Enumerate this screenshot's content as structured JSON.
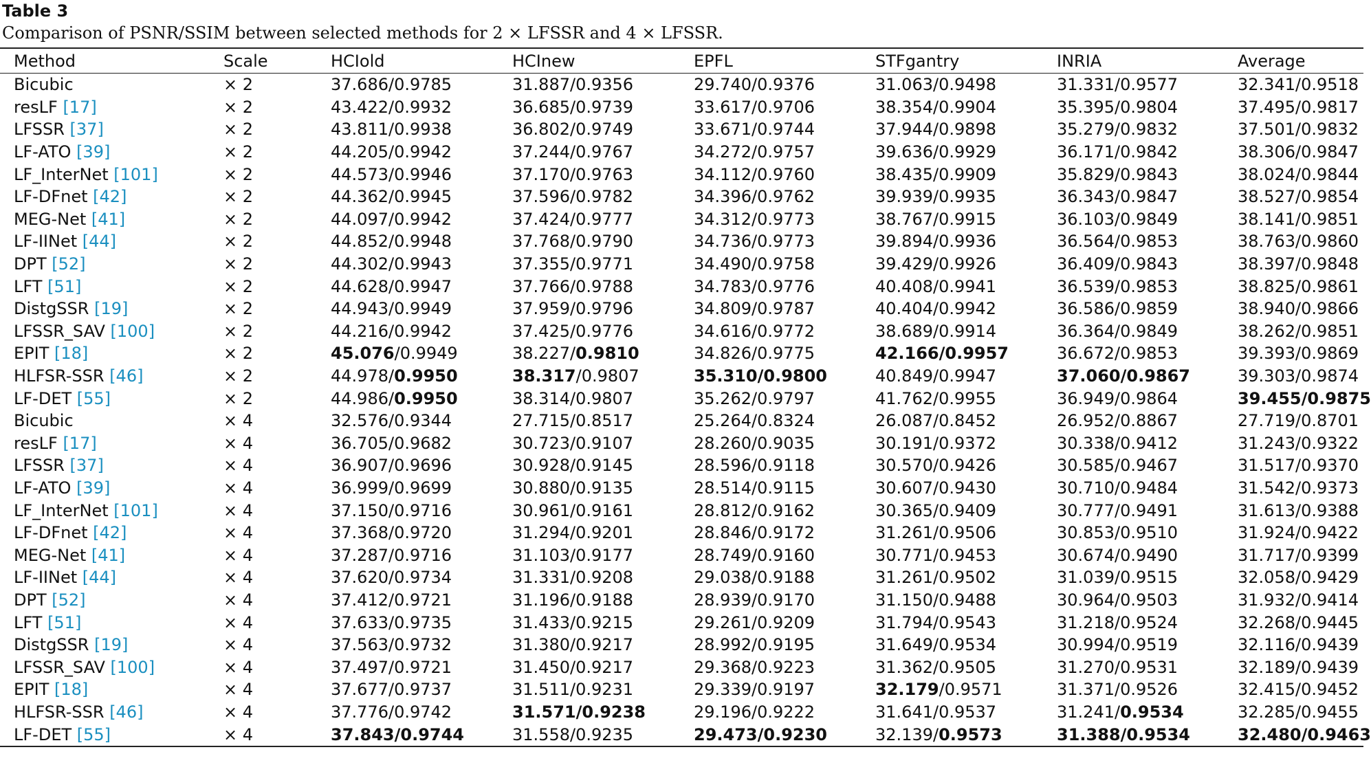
{
  "title": "Table 3",
  "caption": "Comparison of PSNR/SSIM between selected methods for 2 × LFSSR and 4 × LFSSR.",
  "table": {
    "headers": [
      "Method",
      "Scale",
      "HCIold",
      "HCInew",
      "EPFL",
      "STFgantry",
      "INRIA",
      "Average"
    ],
    "rows": [
      {
        "method": "Bicubic",
        "scale": "× 2",
        "cells": [
          "37.686/0.9785",
          "31.887/0.9356",
          "29.740/0.9376",
          "31.063/0.9498",
          "31.331/0.9577",
          "32.341/0.9518"
        ]
      },
      {
        "method": "resLF",
        "ref": "[17]",
        "scale": "× 2",
        "cells": [
          "43.422/0.9932",
          "36.685/0.9739",
          "33.617/0.9706",
          "38.354/0.9904",
          "35.395/0.9804",
          "37.495/0.9817"
        ]
      },
      {
        "method": "LFSSR",
        "ref": "[37]",
        "scale": "× 2",
        "cells": [
          "43.811/0.9938",
          "36.802/0.9749",
          "33.671/0.9744",
          "37.944/0.9898",
          "35.279/0.9832",
          "37.501/0.9832"
        ]
      },
      {
        "method": "LF-ATO",
        "ref": "[39]",
        "scale": "× 2",
        "cells": [
          "44.205/0.9942",
          "37.244/0.9767",
          "34.272/0.9757",
          "39.636/0.9929",
          "36.171/0.9842",
          "38.306/0.9847"
        ]
      },
      {
        "method": "LF_InterNet",
        "ref": "[101]",
        "scale": "× 2",
        "cells": [
          "44.573/0.9946",
          "37.170/0.9763",
          "34.112/0.9760",
          "38.435/0.9909",
          "35.829/0.9843",
          "38.024/0.9844"
        ]
      },
      {
        "method": "LF-DFnet",
        "ref": "[42]",
        "scale": "× 2",
        "cells": [
          "44.362/0.9945",
          "37.596/0.9782",
          "34.396/0.9762",
          "39.939/0.9935",
          "36.343/0.9847",
          "38.527/0.9854"
        ]
      },
      {
        "method": "MEG-Net",
        "ref": "[41]",
        "scale": "× 2",
        "cells": [
          "44.097/0.9942",
          "37.424/0.9777",
          "34.312/0.9773",
          "38.767/0.9915",
          "36.103/0.9849",
          "38.141/0.9851"
        ]
      },
      {
        "method": "LF-IINet",
        "ref": "[44]",
        "scale": "× 2",
        "cells": [
          "44.852/0.9948",
          "37.768/0.9790",
          "34.736/0.9773",
          "39.894/0.9936",
          "36.564/0.9853",
          "38.763/0.9860"
        ]
      },
      {
        "method": "DPT",
        "ref": "[52]",
        "scale": "× 2",
        "cells": [
          "44.302/0.9943",
          "37.355/0.9771",
          "34.490/0.9758",
          "39.429/0.9926",
          "36.409/0.9843",
          "38.397/0.9848"
        ]
      },
      {
        "method": "LFT",
        "ref": "[51]",
        "scale": "× 2",
        "cells": [
          "44.628/0.9947",
          "37.766/0.9788",
          "34.783/0.9776",
          "40.408/0.9941",
          "36.539/0.9853",
          "38.825/0.9861"
        ]
      },
      {
        "method": "DistgSSR",
        "ref": "[19]",
        "scale": "× 2",
        "cells": [
          "44.943/0.9949",
          "37.959/0.9796",
          "34.809/0.9787",
          "40.404/0.9942",
          "36.586/0.9859",
          "38.940/0.9866"
        ]
      },
      {
        "method": "LFSSR_SAV",
        "ref": "[100]",
        "scale": "× 2",
        "cells": [
          "44.216/0.9942",
          "37.425/0.9776",
          "34.616/0.9772",
          "38.689/0.9914",
          "36.364/0.9849",
          "38.262/0.9851"
        ]
      },
      {
        "method": "EPIT",
        "ref": "[18]",
        "scale": "× 2",
        "cells": [
          {
            "text": "45.076/0.9949",
            "bold": "psnr"
          },
          {
            "text": "38.227/0.9810",
            "bold": "ssim"
          },
          "34.826/0.9775",
          {
            "text": "42.166/0.9957",
            "bold": "both"
          },
          "36.672/0.9853",
          "39.393/0.9869"
        ]
      },
      {
        "method": "HLFSR-SSR",
        "ref": "[46]",
        "scale": "× 2",
        "cells": [
          {
            "text": "44.978/0.9950",
            "bold": "ssim"
          },
          {
            "text": "38.317/0.9807",
            "bold": "psnr"
          },
          {
            "text": "35.310/0.9800",
            "bold": "both"
          },
          "40.849/0.9947",
          {
            "text": "37.060/0.9867",
            "bold": "both"
          },
          "39.303/0.9874"
        ]
      },
      {
        "method": "LF-DET",
        "ref": "[55]",
        "scale": "× 2",
        "cells": [
          {
            "text": "44.986/0.9950",
            "bold": "ssim"
          },
          "38.314/0.9807",
          "35.262/0.9797",
          "41.762/0.9955",
          "36.949/0.9864",
          {
            "text": "39.455/0.9875",
            "bold": "both"
          }
        ]
      },
      {
        "method": "Bicubic",
        "scale": "× 4",
        "cells": [
          "32.576/0.9344",
          "27.715/0.8517",
          "25.264/0.8324",
          "26.087/0.8452",
          "26.952/0.8867",
          "27.719/0.8701"
        ]
      },
      {
        "method": "resLF",
        "ref": "[17]",
        "scale": "× 4",
        "cells": [
          "36.705/0.9682",
          "30.723/0.9107",
          "28.260/0.9035",
          "30.191/0.9372",
          "30.338/0.9412",
          "31.243/0.9322"
        ]
      },
      {
        "method": "LFSSR",
        "ref": "[37]",
        "scale": "× 4",
        "cells": [
          "36.907/0.9696",
          "30.928/0.9145",
          "28.596/0.9118",
          "30.570/0.9426",
          "30.585/0.9467",
          "31.517/0.9370"
        ]
      },
      {
        "method": "LF-ATO",
        "ref": "[39]",
        "scale": "× 4",
        "cells": [
          "36.999/0.9699",
          "30.880/0.9135",
          "28.514/0.9115",
          "30.607/0.9430",
          "30.710/0.9484",
          "31.542/0.9373"
        ]
      },
      {
        "method": "LF_InterNet",
        "ref": "[101]",
        "scale": "× 4",
        "cells": [
          "37.150/0.9716",
          "30.961/0.9161",
          "28.812/0.9162",
          "30.365/0.9409",
          "30.777/0.9491",
          "31.613/0.9388"
        ]
      },
      {
        "method": "LF-DFnet",
        "ref": "[42]",
        "scale": "× 4",
        "cells": [
          "37.368/0.9720",
          "31.294/0.9201",
          "28.846/0.9172",
          "31.261/0.9506",
          "30.853/0.9510",
          "31.924/0.9422"
        ]
      },
      {
        "method": "MEG-Net",
        "ref": "[41]",
        "scale": "× 4",
        "cells": [
          "37.287/0.9716",
          "31.103/0.9177",
          "28.749/0.9160",
          "30.771/0.9453",
          "30.674/0.9490",
          "31.717/0.9399"
        ]
      },
      {
        "method": "LF-IINet",
        "ref": "[44]",
        "scale": "× 4",
        "cells": [
          "37.620/0.9734",
          "31.331/0.9208",
          "29.038/0.9188",
          "31.261/0.9502",
          "31.039/0.9515",
          "32.058/0.9429"
        ]
      },
      {
        "method": "DPT",
        "ref": "[52]",
        "scale": "× 4",
        "cells": [
          "37.412/0.9721",
          "31.196/0.9188",
          "28.939/0.9170",
          "31.150/0.9488",
          "30.964/0.9503",
          "31.932/0.9414"
        ]
      },
      {
        "method": "LFT",
        "ref": "[51]",
        "scale": "× 4",
        "cells": [
          "37.633/0.9735",
          "31.433/0.9215",
          "29.261/0.9209",
          "31.794/0.9543",
          "31.218/0.9524",
          "32.268/0.9445"
        ]
      },
      {
        "method": "DistgSSR",
        "ref": "[19]",
        "scale": "× 4",
        "cells": [
          "37.563/0.9732",
          "31.380/0.9217",
          "28.992/0.9195",
          "31.649/0.9534",
          "30.994/0.9519",
          "32.116/0.9439"
        ]
      },
      {
        "method": "LFSSR_SAV",
        "ref": "[100]",
        "scale": "× 4",
        "cells": [
          "37.497/0.9721",
          "31.450/0.9217",
          "29.368/0.9223",
          "31.362/0.9505",
          "31.270/0.9531",
          "32.189/0.9439"
        ]
      },
      {
        "method": "EPIT",
        "ref": "[18]",
        "scale": "× 4",
        "cells": [
          "37.677/0.9737",
          "31.511/0.9231",
          "29.339/0.9197",
          {
            "text": "32.179/0.9571",
            "bold": "psnr"
          },
          "31.371/0.9526",
          "32.415/0.9452"
        ]
      },
      {
        "method": "HLFSR-SSR",
        "ref": "[46]",
        "scale": "× 4",
        "cells": [
          "37.776/0.9742",
          {
            "text": "31.571/0.9238",
            "bold": "both"
          },
          "29.196/0.9222",
          "31.641/0.9537",
          {
            "text": "31.241/0.9534",
            "bold": "ssim"
          },
          "32.285/0.9455"
        ]
      },
      {
        "method": "LF-DET",
        "ref": "[55]",
        "scale": "× 4",
        "cells": [
          {
            "text": "37.843/0.9744",
            "bold": "both"
          },
          "31.558/0.9235",
          {
            "text": "29.473/0.9230",
            "bold": "both"
          },
          {
            "text": "32.139/0.9573",
            "bold": "ssim"
          },
          {
            "text": "31.388/0.9534",
            "bold": "both"
          },
          {
            "text": "32.480/0.9463",
            "bold": "both"
          }
        ]
      }
    ]
  }
}
